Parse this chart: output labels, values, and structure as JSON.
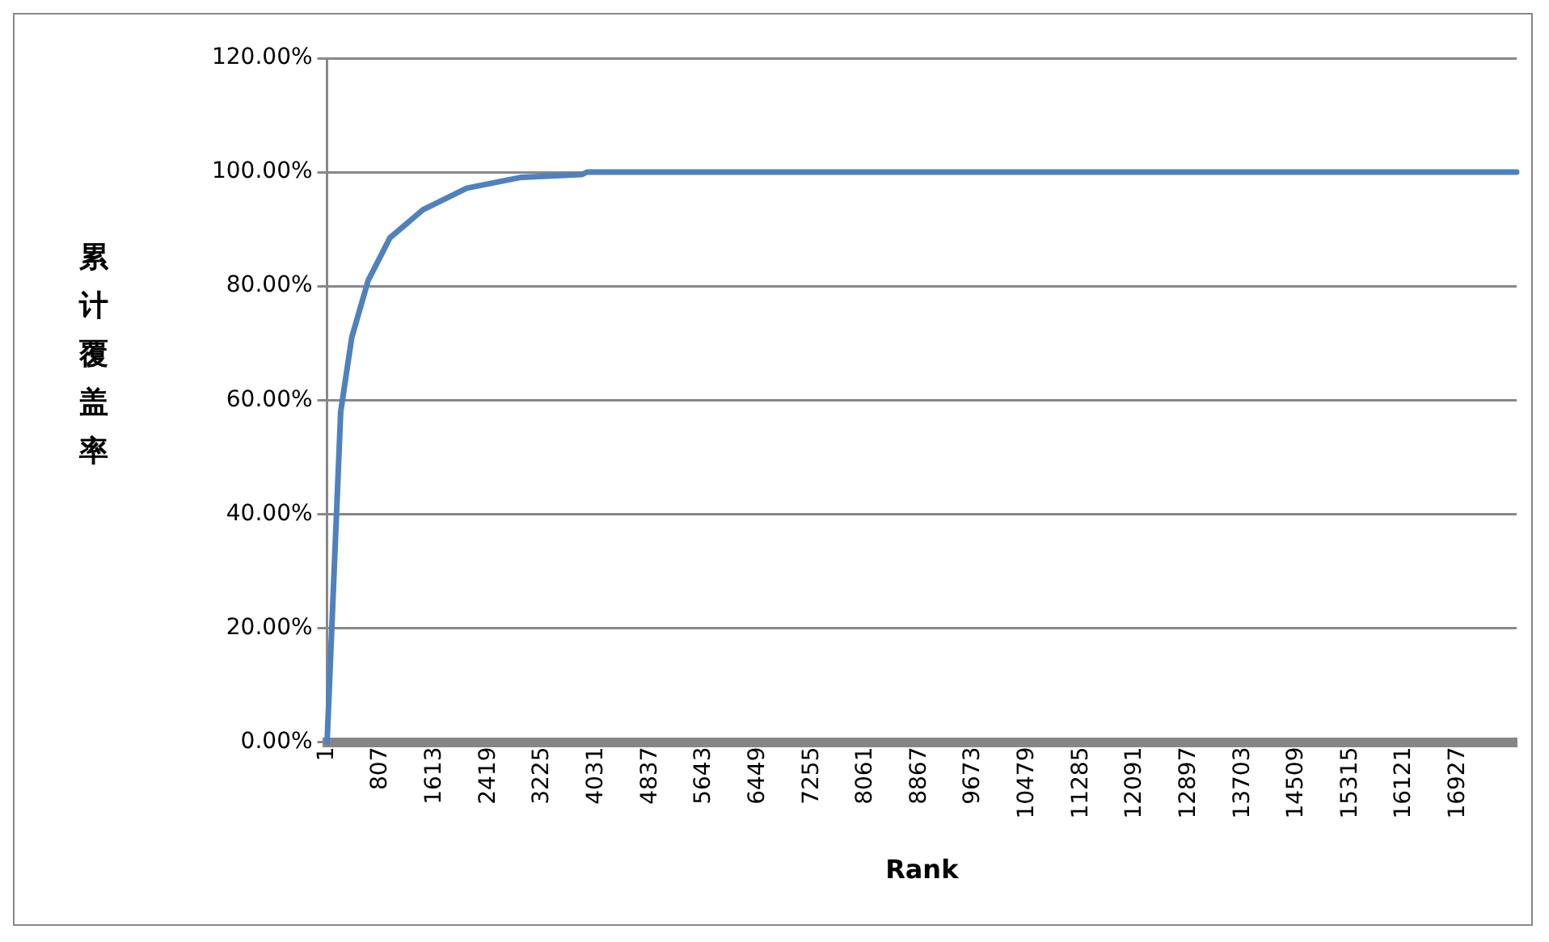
{
  "chart_data": {
    "type": "line",
    "xlabel": "Rank",
    "ylabel": "累计覆盖率",
    "x": [
      1,
      205,
      370,
      616,
      943,
      1435,
      2092,
      2911,
      3814,
      3890,
      17800
    ],
    "series": [
      {
        "color": "#4f81bd",
        "values": [
          0,
          58,
          71,
          81,
          88.5,
          93.4,
          97.2,
          99.1,
          99.6,
          100,
          100
        ]
      }
    ],
    "xlim": [
      1,
      17800
    ],
    "xticks": [
      1,
      807,
      1613,
      2419,
      3225,
      4031,
      4837,
      5643,
      6449,
      7255,
      8061,
      8867,
      9673,
      10479,
      11285,
      12091,
      12897,
      13703,
      14509,
      15315,
      16121,
      16927
    ],
    "ylim": [
      0,
      120
    ],
    "yticks": [
      {
        "value": 0,
        "label": "0.00%"
      },
      {
        "value": 20,
        "label": "20.00%"
      },
      {
        "value": 40,
        "label": "40.00%"
      },
      {
        "value": 60,
        "label": "60.00%"
      },
      {
        "value": 80,
        "label": "80.00%"
      },
      {
        "value": 100,
        "label": "100.00%"
      },
      {
        "value": 120,
        "label": "120.00%"
      }
    ],
    "grid": "y",
    "legend": false,
    "marker": "none",
    "line_style": "solid"
  }
}
